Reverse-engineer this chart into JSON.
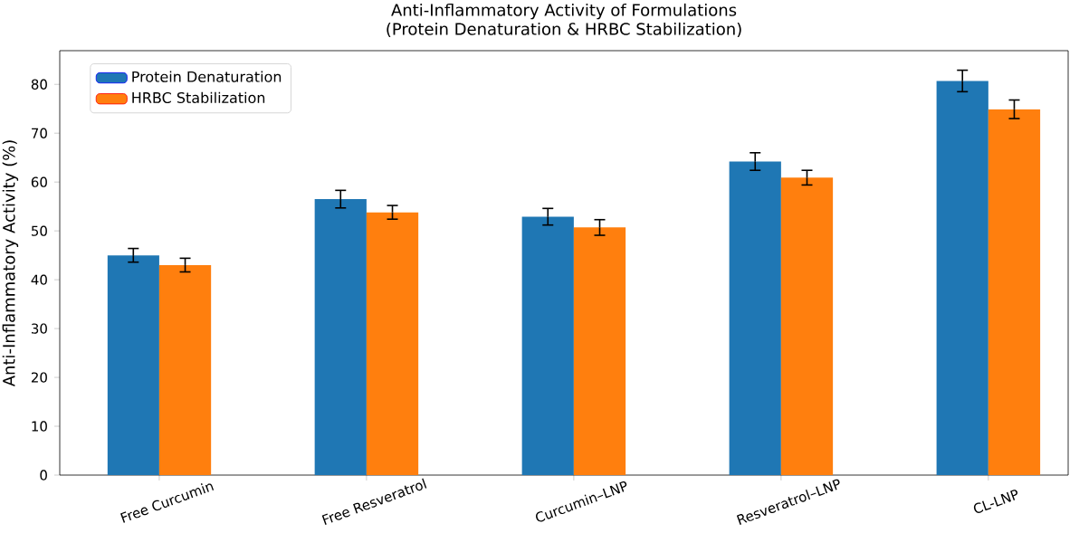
{
  "chart_data": {
    "type": "bar",
    "title": "Anti-Inflammatory Activity of Formulations\n(Protein Denaturation & HRBC Stabilization)",
    "ylabel": "Anti-Inflammatory Activity (%)",
    "categories": [
      "Free Curcumin",
      "Free Resveratrol",
      "Curcumin–LNP",
      "Resveratrol–LNP",
      "CL-LNP"
    ],
    "series": [
      {
        "name": "Protein Denaturation",
        "color": "#1f77b4",
        "values": [
          45.0,
          56.5,
          52.9,
          64.2,
          80.7
        ],
        "errors": [
          1.4,
          1.8,
          1.7,
          1.8,
          2.2
        ]
      },
      {
        "name": "HRBC Stabilization",
        "color": "#ff7f0e",
        "values": [
          43.0,
          53.8,
          50.7,
          60.9,
          74.9
        ],
        "errors": [
          1.4,
          1.4,
          1.6,
          1.5,
          1.9
        ]
      }
    ],
    "ylim": [
      0,
      86.9
    ],
    "yticks": [
      0,
      10,
      20,
      30,
      40,
      50,
      60,
      70,
      80
    ],
    "legend": "top left",
    "grid": false
  }
}
